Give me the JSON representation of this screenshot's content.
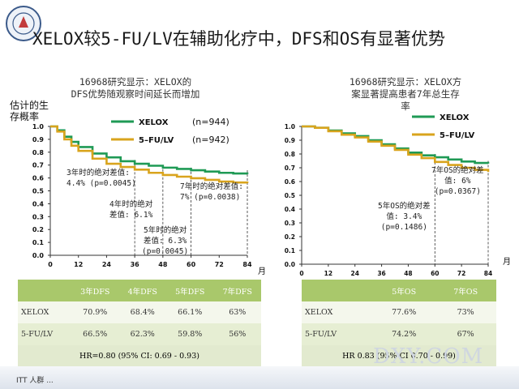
{
  "title": "XELOX较5-FU/LV在辅助化疗中，DFS和OS有显著优势",
  "colors": {
    "xelox": "#1f9a55",
    "fulv": "#d9a41d",
    "table_header": "#a9c86b"
  },
  "left": {
    "subtitle_lines": [
      "16968研究显示：XELOX的",
      "DFS优势随观察时间延长而增加"
    ],
    "ylabel_lines": [
      "估计的生",
      "存概率"
    ],
    "month_label": "月",
    "legend": [
      {
        "name": "XELOX",
        "n": "(n=944)"
      },
      {
        "name": "5–FU/LV",
        "n": "(n=942)"
      }
    ],
    "annotations": [
      {
        "id": "3yr",
        "lines": [
          "3年时的绝对差值:",
          "4.4%  (p=0.0045)"
        ]
      },
      {
        "id": "4yr",
        "lines": [
          "4年时的绝对",
          "差值: 6.1%"
        ]
      },
      {
        "id": "5yr",
        "lines": [
          "5年时的绝对",
          "差值: 6.3%",
          "(p=0.0045)"
        ]
      },
      {
        "id": "7yr",
        "lines": [
          "7年时的绝对差值:",
          "7%  (p=0.0038)"
        ]
      }
    ],
    "table": {
      "headers": [
        "",
        "3年DFS",
        "4年DFS",
        "5年DFS",
        "7年DFS"
      ],
      "rows": [
        [
          "XELOX",
          "70.9%",
          "68.4%",
          "66.1%",
          "63%"
        ],
        [
          "5-FU/LV",
          "66.5%",
          "62.3%",
          "59.8%",
          "56%"
        ]
      ],
      "footer": "HR=0.80 (95% CI: 0.69 - 0.93)"
    }
  },
  "right": {
    "subtitle_lines": [
      "16968研究显示：XELOX方",
      "案显著提高患者7年总生存",
      "率"
    ],
    "month_label": "月",
    "legend": [
      {
        "name": "XELOX"
      },
      {
        "name": "5–FU/LV"
      }
    ],
    "annotations": [
      {
        "id": "5yr",
        "lines": [
          "5年OS的绝对差",
          "值: 3.4%",
          "(p=0.1486)"
        ]
      },
      {
        "id": "7yr",
        "lines": [
          "7年OS的绝对差",
          "值: 6%",
          "(p=0.0367)"
        ]
      }
    ],
    "table": {
      "headers": [
        "",
        "5年OS",
        "7年OS"
      ],
      "rows": [
        [
          "XELOX",
          "77.6%",
          "73%"
        ],
        [
          "5-FU/LV",
          "74.2%",
          "67%"
        ]
      ],
      "footer": "HR 0.83 (95% CI 0.70 - 0.99)"
    }
  },
  "footer": {
    "text": "ITT 人群  ...",
    "watermark": "DXY.COM"
  },
  "chart_data": [
    {
      "type": "line",
      "title": "16968研究显示：XELOX的DFS优势随观察时间延长而增加",
      "xlabel": "月",
      "ylabel": "估计的生存概率",
      "xlim": [
        0,
        84
      ],
      "ylim": [
        0,
        1.0
      ],
      "xticks": [
        0,
        12,
        24,
        36,
        48,
        60,
        72,
        84
      ],
      "yticks": [
        0.0,
        0.1,
        0.2,
        0.3,
        0.4,
        0.5,
        0.6,
        0.7,
        0.8,
        0.9,
        1.0
      ],
      "grid": false,
      "legend_position": "top-right",
      "series": [
        {
          "name": "XELOX",
          "x": [
            0,
            3,
            6,
            9,
            12,
            18,
            24,
            30,
            36,
            42,
            48,
            54,
            60,
            66,
            72,
            78,
            84
          ],
          "y": [
            1.0,
            0.97,
            0.92,
            0.88,
            0.84,
            0.79,
            0.76,
            0.73,
            0.71,
            0.695,
            0.68,
            0.67,
            0.66,
            0.65,
            0.64,
            0.635,
            0.63
          ]
        },
        {
          "name": "5–FU/LV",
          "x": [
            0,
            3,
            6,
            9,
            12,
            18,
            24,
            30,
            36,
            42,
            48,
            54,
            60,
            66,
            72,
            78,
            84
          ],
          "y": [
            1.0,
            0.96,
            0.9,
            0.85,
            0.81,
            0.75,
            0.71,
            0.685,
            0.665,
            0.64,
            0.623,
            0.61,
            0.598,
            0.585,
            0.572,
            0.565,
            0.56
          ]
        }
      ]
    },
    {
      "type": "line",
      "title": "16968研究显示：XELOX方案显著提高患者7年总生存率",
      "xlabel": "月",
      "ylabel": "",
      "xlim": [
        0,
        84
      ],
      "ylim": [
        0,
        1.0
      ],
      "xticks": [
        0,
        12,
        24,
        36,
        48,
        60,
        72,
        84
      ],
      "yticks": [
        0.0,
        0.1,
        0.2,
        0.3,
        0.4,
        0.5,
        0.6,
        0.7,
        0.8,
        0.9,
        1.0
      ],
      "grid": false,
      "legend_position": "top-right",
      "series": [
        {
          "name": "XELOX",
          "x": [
            0,
            6,
            12,
            18,
            24,
            30,
            36,
            42,
            48,
            54,
            60,
            66,
            72,
            78,
            84
          ],
          "y": [
            1.0,
            0.99,
            0.97,
            0.95,
            0.93,
            0.9,
            0.87,
            0.84,
            0.81,
            0.79,
            0.776,
            0.76,
            0.745,
            0.735,
            0.73
          ]
        },
        {
          "name": "5–FU/LV",
          "x": [
            0,
            6,
            12,
            18,
            24,
            30,
            36,
            42,
            48,
            54,
            60,
            66,
            72,
            78,
            84
          ],
          "y": [
            1.0,
            0.99,
            0.965,
            0.94,
            0.92,
            0.89,
            0.86,
            0.83,
            0.795,
            0.77,
            0.742,
            0.72,
            0.7,
            0.685,
            0.67
          ]
        }
      ]
    }
  ]
}
